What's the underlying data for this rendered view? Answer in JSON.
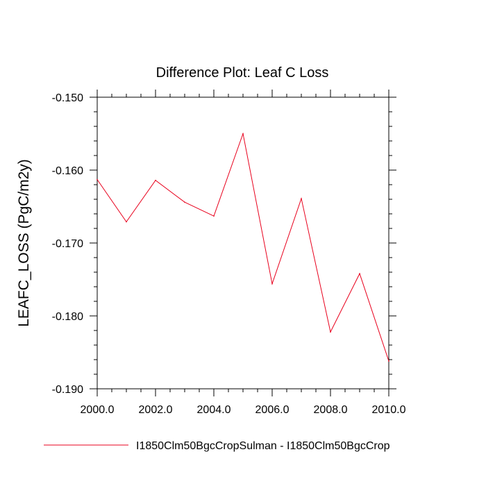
{
  "chart_data": {
    "type": "line",
    "title": "Difference Plot: Leaf C Loss",
    "xlabel": "",
    "ylabel": "LEAFC_LOSS  (PgC/m2y)",
    "xlim": [
      2000,
      2010
    ],
    "ylim": [
      -0.19,
      -0.15
    ],
    "x_ticks": [
      "2000.0",
      "2002.0",
      "2004.0",
      "2006.0",
      "2008.0",
      "2010.0"
    ],
    "y_ticks": [
      "-0.150",
      "-0.160",
      "-0.170",
      "-0.180",
      "-0.190"
    ],
    "grid": false,
    "legend_position": "bottom",
    "series": [
      {
        "name": "I1850Clm50BgcCropSulman - I1850Clm50BgcCrop",
        "color": "#e8001c",
        "x": [
          2000,
          2001,
          2002,
          2003,
          2004,
          2005,
          2006,
          2007,
          2008,
          2009,
          2010
        ],
        "y": [
          -0.1613,
          -0.1671,
          -0.1614,
          -0.1644,
          -0.1663,
          -0.155,
          -0.1756,
          -0.1639,
          -0.1822,
          -0.1742,
          -0.1862
        ]
      }
    ]
  }
}
